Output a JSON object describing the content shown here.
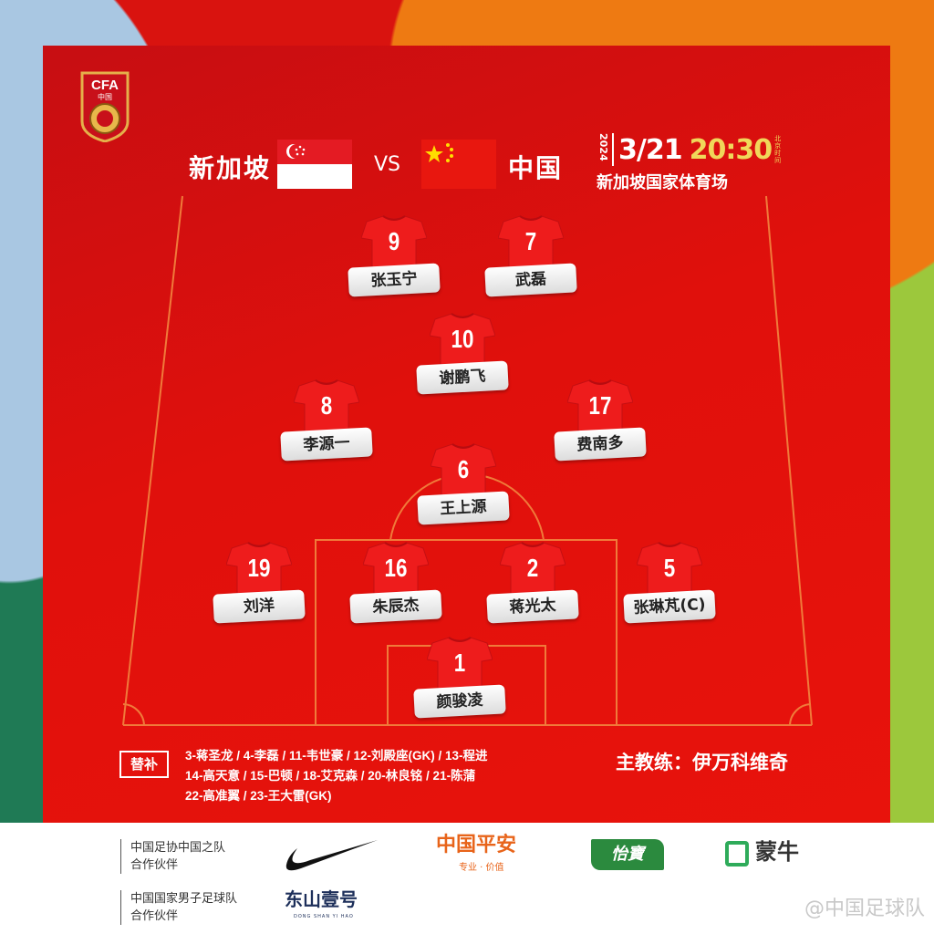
{
  "header": {
    "home_team": "新加坡",
    "away_team": "中国",
    "vs": "VS",
    "year": "2024",
    "date": "3/21",
    "time": "20:30",
    "time_zone": "北京时间",
    "venue": "新加坡国家体育场",
    "logo_text": "CFA 中国"
  },
  "colors": {
    "panel": "#e0100c",
    "time": "#f0d75a",
    "label_bg": "#ffffff"
  },
  "players": [
    {
      "number": "9",
      "name": "张玉宁"
    },
    {
      "number": "7",
      "name": "武磊"
    },
    {
      "number": "10",
      "name": "谢鹏飞"
    },
    {
      "number": "8",
      "name": "李源一"
    },
    {
      "number": "17",
      "name": "费南多"
    },
    {
      "number": "6",
      "name": "王上源"
    },
    {
      "number": "19",
      "name": "刘洋"
    },
    {
      "number": "16",
      "name": "朱辰杰"
    },
    {
      "number": "2",
      "name": "蒋光太"
    },
    {
      "number": "5",
      "name": "张琳芃(C)"
    },
    {
      "number": "1",
      "name": "颜骏凌"
    }
  ],
  "substitutes": {
    "label": "替补",
    "lines": [
      "3-蒋圣龙 / 4-李磊 / 11-韦世豪 / 12-刘殿座(GK) / 13-程进",
      "14-高天意 / 15-巴顿 / 18-艾克森 / 20-林良铭 / 21-陈蒲",
      "22-高准翼 / 23-王大雷(GK)"
    ]
  },
  "coach": "主教练：伊万科维奇",
  "footer": {
    "partner1": [
      "中国足协中国之队",
      "合作伙伴"
    ],
    "partner2": [
      "中国国家男子足球队",
      "合作伙伴"
    ],
    "sponsors": {
      "pingan": "中国平安",
      "pingan_sub": "专业 · 价值",
      "yibao": "怡寶",
      "mengniu": "蒙牛",
      "dongshan": "东山壹号",
      "dongshan_sub": "DONG SHAN YI HAO"
    },
    "watermark": "@中国足球队"
  }
}
